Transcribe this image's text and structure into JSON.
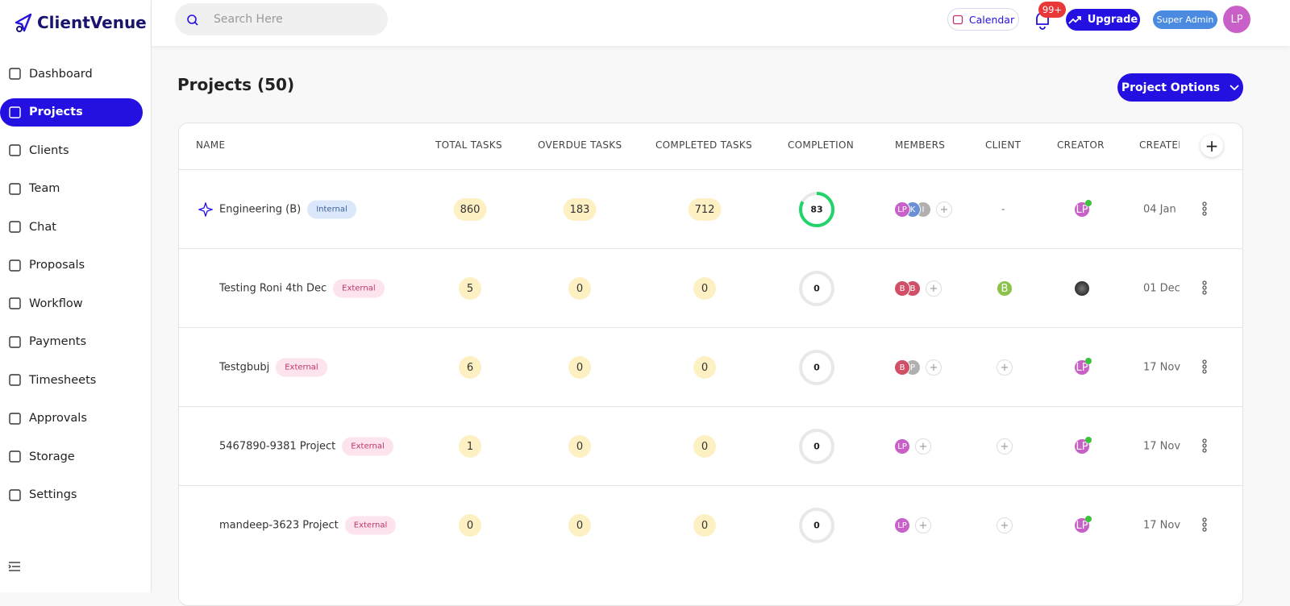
{
  "logo": "ClientVenue",
  "search_placeholder": "Search Here",
  "header": {
    "calendar": "Calendar",
    "notifications": "99+",
    "upgrade": "Upgrade",
    "role": "Super Admin",
    "avatar": "LP"
  },
  "nav": [
    {
      "label": "Dashboard"
    },
    {
      "label": "Projects",
      "active": true
    },
    {
      "label": "Clients"
    },
    {
      "label": "Team"
    },
    {
      "label": "Chat"
    },
    {
      "label": "Proposals"
    },
    {
      "label": "Workflow"
    },
    {
      "label": "Payments"
    },
    {
      "label": "Timesheets"
    },
    {
      "label": "Approvals"
    },
    {
      "label": "Storage"
    },
    {
      "label": "Settings"
    }
  ],
  "page": {
    "title": "Projects (50)",
    "options_button": "Project Options"
  },
  "table": {
    "columns": [
      "NAME",
      "TOTAL TASKS",
      "OVERDUE TASKS",
      "COMPLETED TASKS",
      "COMPLETION",
      "MEMBERS",
      "CLIENT",
      "CREATOR",
      "CREATED"
    ],
    "rows": [
      {
        "name": "Engineering (B)",
        "tag": "Internal",
        "total": 860,
        "overdue": 183,
        "completed": 712,
        "completion": 83,
        "members": [
          "LP",
          "K",
          "I"
        ],
        "client": "-",
        "creator": "LP",
        "created": "04 Jan"
      },
      {
        "name": "Testing Roni 4th Dec",
        "tag": "External",
        "total": 5,
        "overdue": 0,
        "completed": 0,
        "completion": 0,
        "members": [
          "B",
          "B"
        ],
        "client": "B",
        "created": "01 Dec"
      },
      {
        "name": "Testgbubj",
        "tag": "External",
        "total": 6,
        "overdue": 0,
        "completed": 0,
        "completion": 0,
        "members": [
          "B",
          "P"
        ],
        "creator": "LP",
        "created": "17 Nov"
      },
      {
        "name": "5467890-9381 Project",
        "tag": "External",
        "total": 1,
        "overdue": 0,
        "completed": 0,
        "completion": 0,
        "members": [
          "LP"
        ],
        "creator": "LP",
        "created": "17 Nov"
      },
      {
        "name": "mandeep-3623 Project",
        "tag": "External",
        "total": 0,
        "overdue": 0,
        "completed": 0,
        "completion": 0,
        "members": [
          "LP"
        ],
        "creator": "LP",
        "created": "17 Nov"
      }
    ]
  }
}
